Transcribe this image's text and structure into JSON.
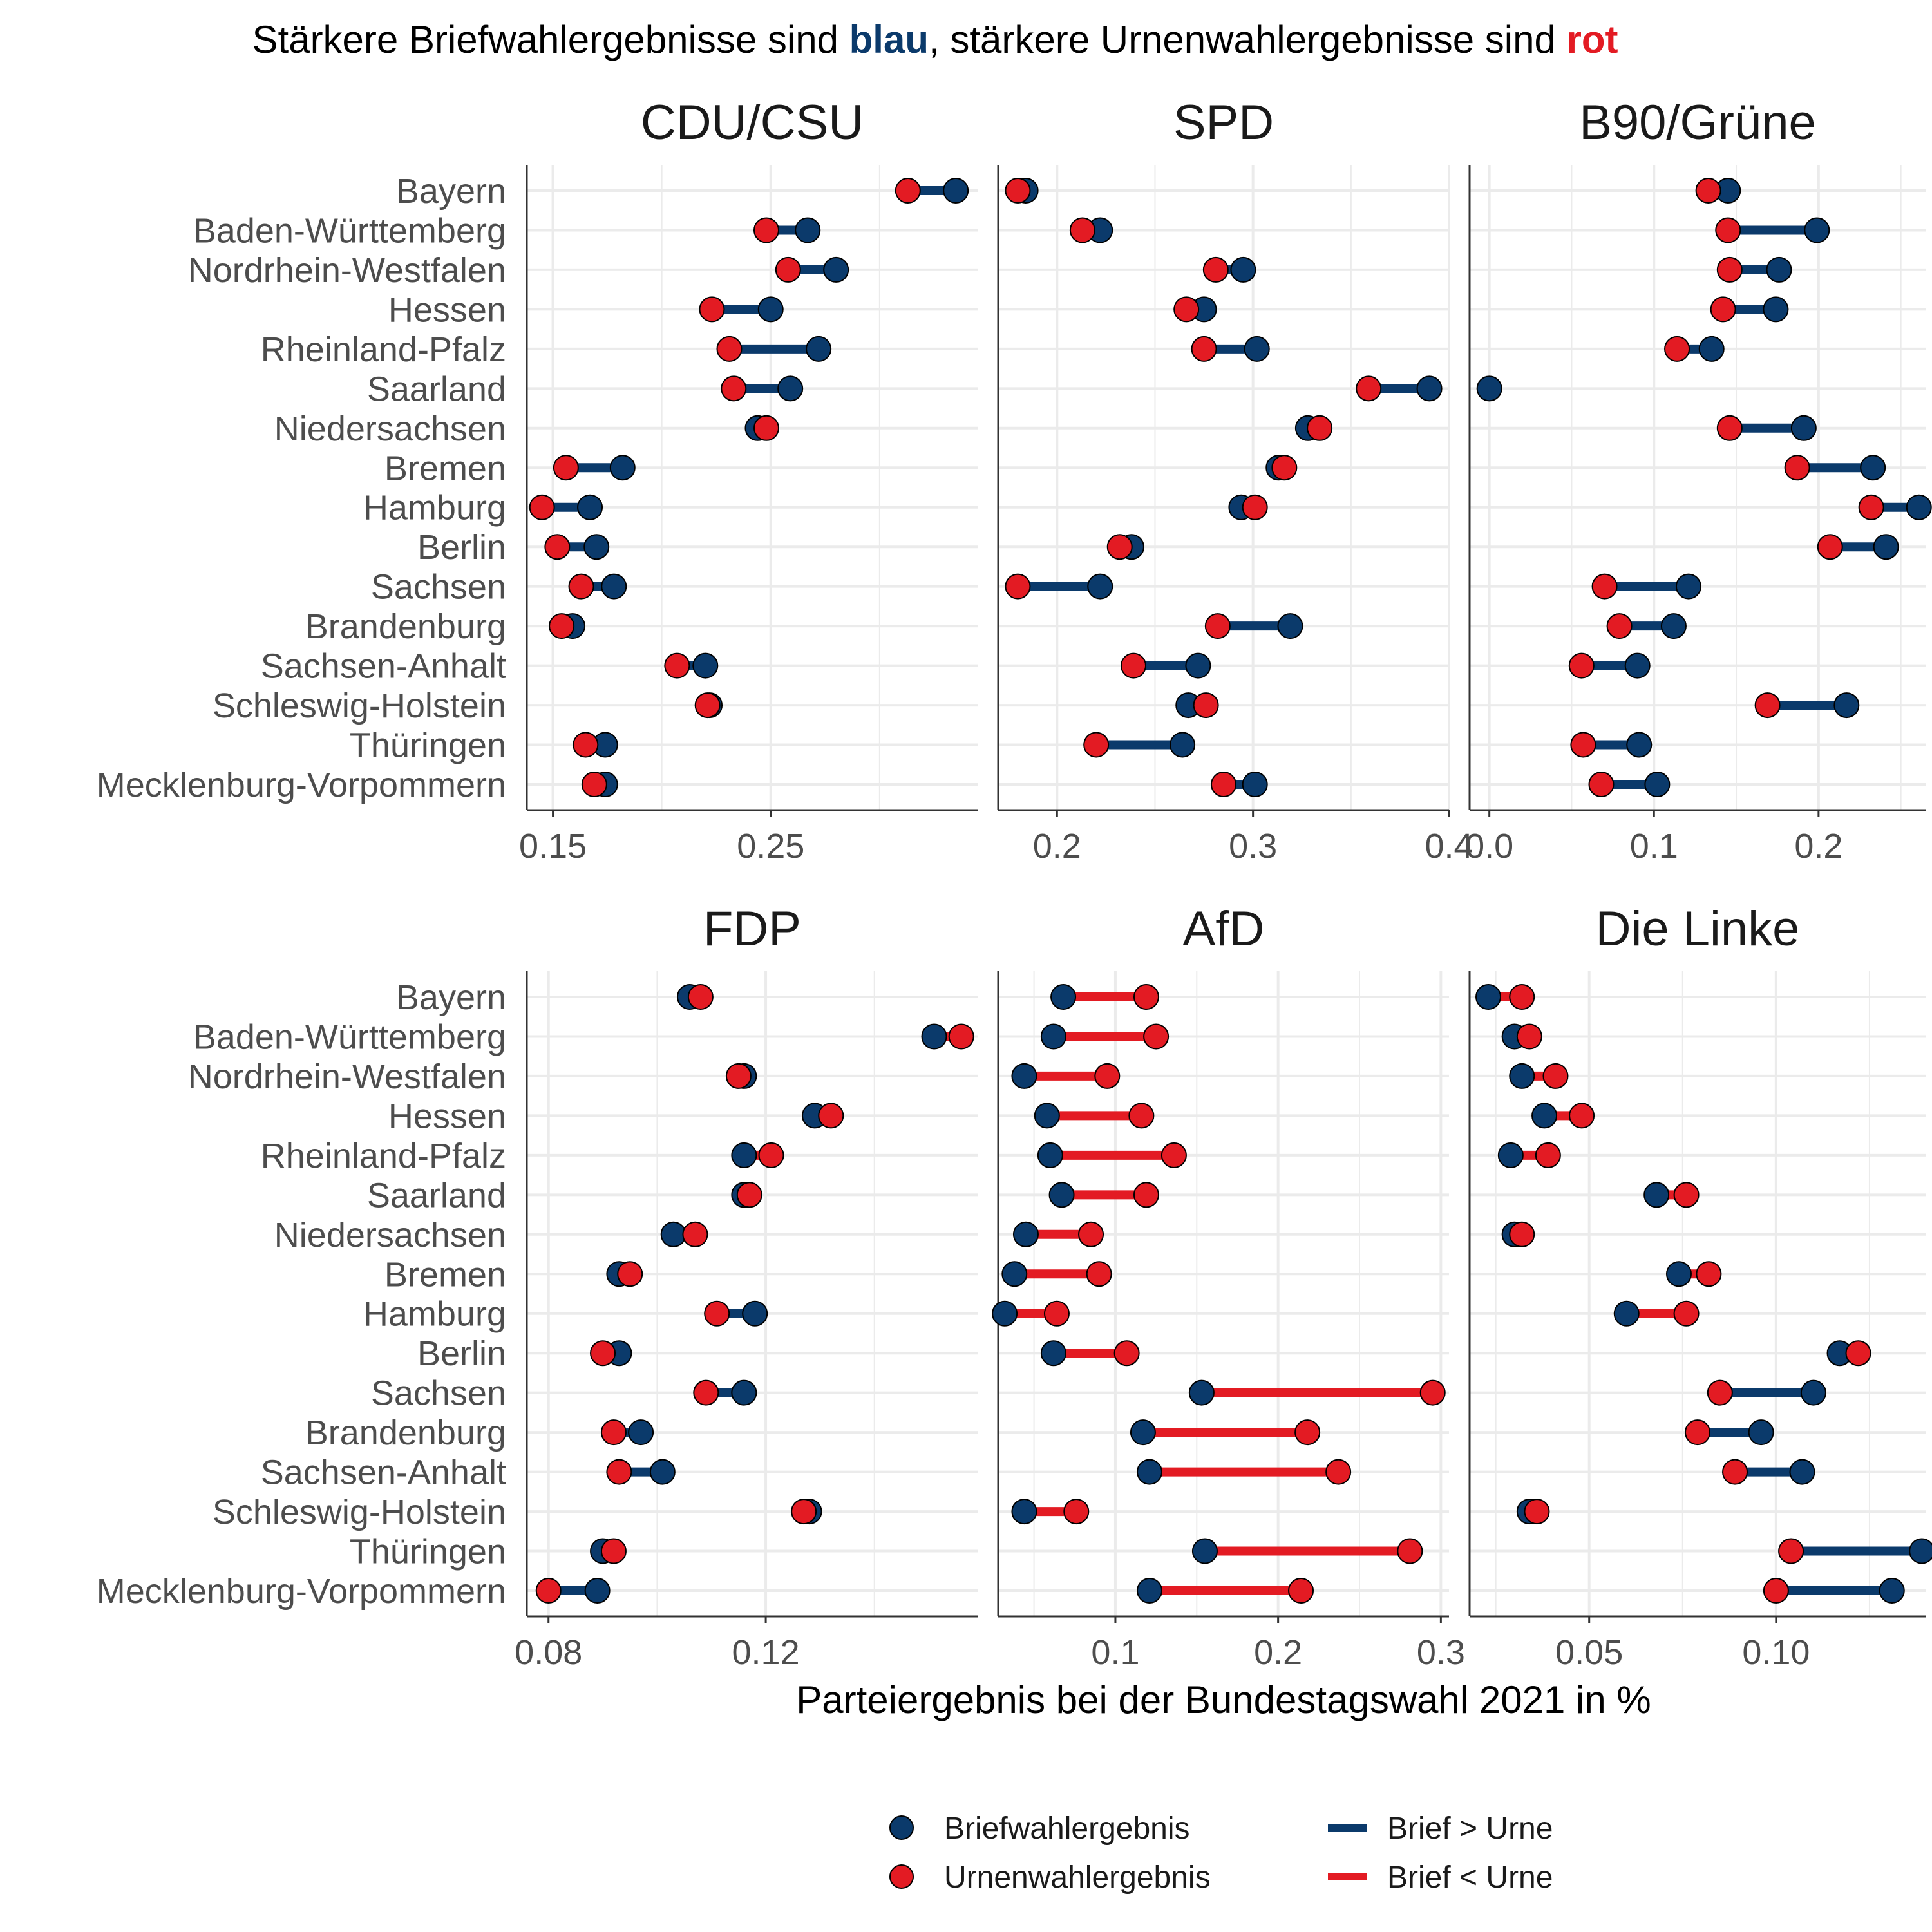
{
  "colors": {
    "blue": "#0b3a6b",
    "red": "#e31b23",
    "grid": "#ebebeb",
    "axis": "#333333"
  },
  "title": {
    "part1": "Stärkere Briefwahlergebnisse sind ",
    "blue_word": "blau",
    "part2": ", stärkere Urnenwahlergebnisse sind ",
    "red_word": "rot"
  },
  "legend": {
    "brief_point": "Briefwahlergebnis",
    "urne_point": "Urnenwahlergebnis",
    "brief_greater": "Brief > Urne",
    "brief_less": "Brief < Urne"
  },
  "chart_data": {
    "type": "dumbbell",
    "xlabel": "Parteiergebnis bei der Bundestagswahl 2021 in %",
    "states": [
      "Bayern",
      "Baden-Württemberg",
      "Nordrhein-Westfalen",
      "Hessen",
      "Rheinland-Pfalz",
      "Saarland",
      "Niedersachsen",
      "Bremen",
      "Hamburg",
      "Berlin",
      "Sachsen",
      "Brandenburg",
      "Sachsen-Anhalt",
      "Schleswig-Holstein",
      "Thüringen",
      "Mecklenburg-Vorpommern"
    ],
    "panels": [
      {
        "party": "CDU/CSU",
        "xlim": [
          0.138,
          0.345
        ],
        "ticks": [
          0.15,
          0.25
        ],
        "tick_labels": [
          "0.15",
          "0.25"
        ],
        "brief": [
          0.335,
          0.267,
          0.28,
          0.25,
          0.272,
          0.259,
          0.244,
          0.182,
          0.167,
          0.17,
          0.178,
          0.159,
          0.22,
          0.222,
          0.174,
          0.174
        ],
        "urne": [
          0.313,
          0.248,
          0.258,
          0.223,
          0.231,
          0.233,
          0.248,
          0.156,
          0.145,
          0.152,
          0.163,
          0.154,
          0.207,
          0.221,
          0.165,
          0.169
        ]
      },
      {
        "party": "SPD",
        "xlim": [
          0.17,
          0.4
        ],
        "ticks": [
          0.2,
          0.3,
          0.4
        ],
        "tick_labels": [
          "0.2",
          "0.3",
          "0.4"
        ],
        "brief": [
          0.184,
          0.222,
          0.295,
          0.275,
          0.302,
          0.39,
          0.328,
          0.313,
          0.294,
          0.238,
          0.222,
          0.319,
          0.272,
          0.267,
          0.264,
          0.301
        ],
        "urne": [
          0.18,
          0.213,
          0.281,
          0.266,
          0.275,
          0.359,
          0.334,
          0.316,
          0.301,
          0.232,
          0.18,
          0.282,
          0.239,
          0.276,
          0.22,
          0.285
        ]
      },
      {
        "party": "B90/Grüne",
        "xlim": [
          -0.012,
          0.265
        ],
        "ticks": [
          0.0,
          0.1,
          0.2
        ],
        "tick_labels": [
          "0.0",
          "0.1",
          "0.2"
        ],
        "brief": [
          0.145,
          0.199,
          0.176,
          0.174,
          0.135,
          0.0,
          0.191,
          0.233,
          0.261,
          0.241,
          0.121,
          0.112,
          0.09,
          0.217,
          0.091,
          0.102
        ],
        "urne": [
          0.133,
          0.145,
          0.146,
          0.142,
          0.114,
          null,
          0.146,
          0.187,
          0.232,
          0.207,
          0.07,
          0.079,
          0.056,
          0.169,
          0.057,
          0.068
        ]
      }
    ],
    "panels_bottom": [
      {
        "party": "FDP",
        "xlim": [
          0.076,
          0.159
        ],
        "ticks": [
          0.08,
          0.12
        ],
        "tick_labels": [
          "0.08",
          "0.12"
        ],
        "brief": [
          0.106,
          0.151,
          0.116,
          0.129,
          0.116,
          0.116,
          0.103,
          0.093,
          0.118,
          0.093,
          0.116,
          0.097,
          0.101,
          0.128,
          0.09,
          0.089
        ],
        "urne": [
          0.108,
          0.156,
          0.115,
          0.132,
          0.121,
          0.117,
          0.107,
          0.095,
          0.111,
          0.09,
          0.109,
          0.092,
          0.093,
          0.127,
          0.092,
          0.08
        ]
      },
      {
        "party": "AfD",
        "xlim": [
          0.028,
          0.305
        ],
        "ticks": [
          0.1,
          0.2,
          0.3
        ],
        "tick_labels": [
          "0.1",
          "0.2",
          "0.3"
        ],
        "brief": [
          0.068,
          0.062,
          0.044,
          0.058,
          0.06,
          0.067,
          0.045,
          0.038,
          0.032,
          0.062,
          0.153,
          0.117,
          0.121,
          0.044,
          0.155,
          0.121
        ],
        "urne": [
          0.119,
          0.125,
          0.095,
          0.116,
          0.136,
          0.119,
          0.085,
          0.09,
          0.064,
          0.107,
          0.295,
          0.218,
          0.237,
          0.076,
          0.281,
          0.214
        ]
      },
      {
        "party": "Die Linke",
        "xlim": [
          0.018,
          0.14
        ],
        "ticks": [
          0.05,
          0.1
        ],
        "tick_labels": [
          "0.05",
          "0.10"
        ],
        "brief": [
          0.023,
          0.03,
          0.032,
          0.038,
          0.029,
          0.068,
          0.03,
          0.074,
          0.06,
          0.117,
          0.11,
          0.096,
          0.107,
          0.034,
          0.139,
          0.131
        ],
        "urne": [
          0.032,
          0.034,
          0.041,
          0.048,
          0.039,
          0.076,
          0.032,
          0.082,
          0.076,
          0.122,
          0.085,
          0.079,
          0.089,
          0.036,
          0.104,
          0.1
        ]
      }
    ]
  }
}
